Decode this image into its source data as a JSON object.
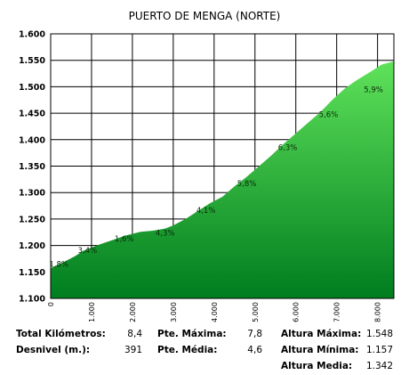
{
  "chart_data": {
    "type": "area",
    "title": "PUERTO DE MENGA (NORTE)",
    "xlabel": "",
    "ylabel": "",
    "xlim": [
      0,
      8400
    ],
    "ylim": [
      1100,
      1600
    ],
    "y_ticks": [
      "1.100",
      "1.150",
      "1.200",
      "1.250",
      "1.300",
      "1.350",
      "1.400",
      "1.450",
      "1.500",
      "1.550",
      "1.600"
    ],
    "x_ticks": [
      "0",
      "1.000",
      "2.000",
      "3.000",
      "4.000",
      "5.000",
      "6.000",
      "7.000",
      "8.000"
    ],
    "grid": true,
    "profile_x": [
      0,
      300,
      600,
      800,
      1000,
      1200,
      1500,
      1800,
      2000,
      2200,
      2500,
      2800,
      3000,
      3300,
      3600,
      3900,
      4200,
      4500,
      4800,
      5100,
      5400,
      5700,
      6000,
      6300,
      6600,
      6900,
      7200,
      7500,
      7800,
      8100,
      8400
    ],
    "profile_y": [
      1157,
      1168,
      1180,
      1190,
      1196,
      1202,
      1210,
      1218,
      1222,
      1226,
      1228,
      1232,
      1238,
      1250,
      1265,
      1280,
      1292,
      1312,
      1330,
      1350,
      1370,
      1392,
      1412,
      1432,
      1452,
      1476,
      1497,
      1513,
      1527,
      1542,
      1548
    ],
    "segments": [
      {
        "x": 200,
        "y": 1160,
        "label": "1,8%"
      },
      {
        "x": 900,
        "y": 1186,
        "label": "3,4%"
      },
      {
        "x": 1800,
        "y": 1208,
        "label": "1,6%"
      },
      {
        "x": 2800,
        "y": 1219,
        "label": "4,3%"
      },
      {
        "x": 3800,
        "y": 1262,
        "label": "4,1%"
      },
      {
        "x": 4800,
        "y": 1312,
        "label": "5,8%"
      },
      {
        "x": 5800,
        "y": 1380,
        "label": "6,3%"
      },
      {
        "x": 6800,
        "y": 1443,
        "label": "5,6%"
      },
      {
        "x": 7900,
        "y": 1490,
        "label": "5,9%"
      }
    ],
    "colors": {
      "fill_top": "#5fe25a",
      "fill_bottom": "#007d1f",
      "grid": "#000000"
    }
  },
  "stats": {
    "total_km_label": "Total Kilómetros:",
    "total_km_value": "8,4",
    "desnivel_label": "Desnivel (m.):",
    "desnivel_value": "391",
    "pte_max_label": "Pte. Máxima:",
    "pte_max_value": "7,8",
    "pte_media_label": "Pte. Média:",
    "pte_media_value": "4,6",
    "alt_max_label": "Altura Máxima:",
    "alt_max_value": "1.548",
    "alt_min_label": "Altura Mínima:",
    "alt_min_value": "1.157",
    "alt_media_label": "Altura Media:",
    "alt_media_value": "1.342"
  }
}
